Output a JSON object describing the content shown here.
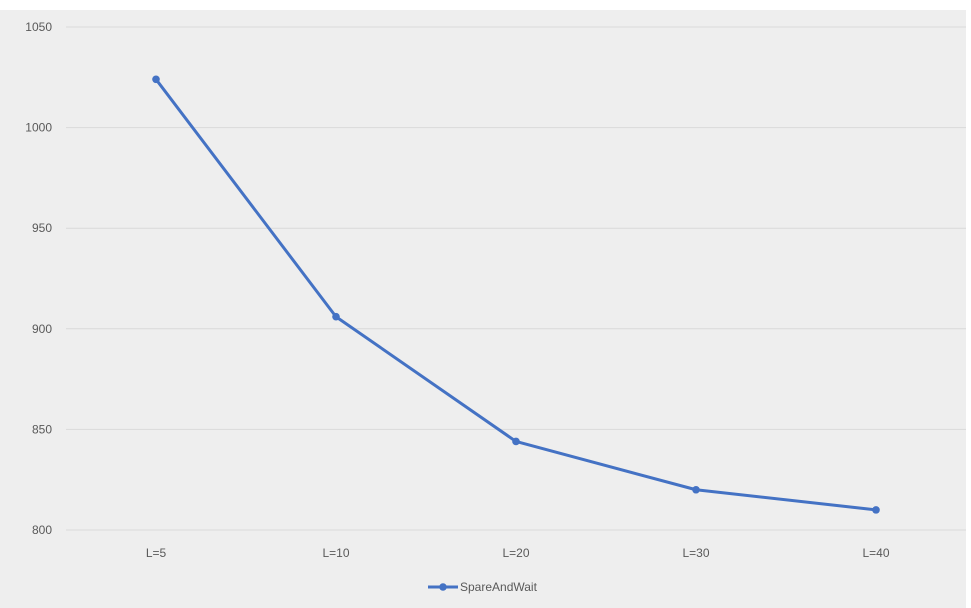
{
  "chart_data": {
    "type": "line",
    "categories": [
      "L=5",
      "L=10",
      "L=20",
      "L=30",
      "L=40"
    ],
    "series": [
      {
        "name": "SpareAndWait",
        "values": [
          1024,
          906,
          844,
          820,
          810
        ],
        "color": "#4472C4"
      }
    ],
    "ylim": [
      800,
      1050
    ],
    "yticks": [
      800,
      850,
      900,
      950,
      1000,
      1050
    ],
    "grid": true,
    "legend_position": "bottom",
    "background_color": "#EEEEEE",
    "gridline_color": "#D9D9D9"
  }
}
